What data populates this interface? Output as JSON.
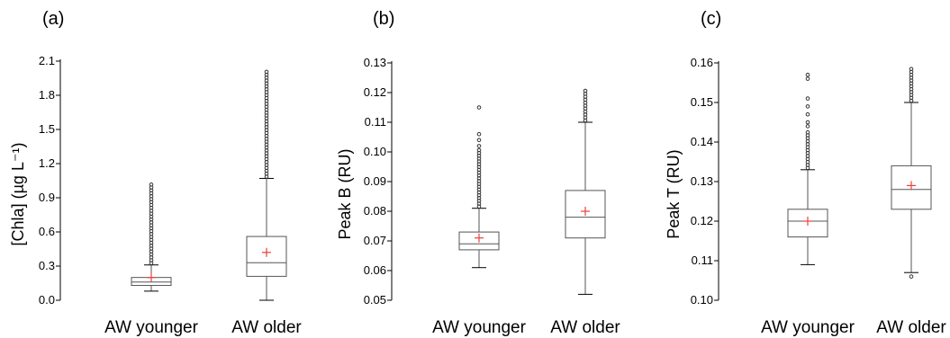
{
  "chart_data": [
    {
      "type": "box",
      "panel_label": "(a)",
      "ylabel": "[Chla] (µg L⁻¹)",
      "ylim": [
        0.0,
        2.1
      ],
      "yticks": [
        "0.0",
        "0.3",
        "0.6",
        "0.9",
        "1.2",
        "1.5",
        "1.8",
        "2.1"
      ],
      "categories": [
        "AW younger",
        "AW older"
      ],
      "boxes": [
        {
          "name": "AW younger",
          "whisker_low": 0.08,
          "q1": 0.13,
          "median": 0.16,
          "q3": 0.2,
          "whisker_high": 0.31,
          "mean": 0.2,
          "outlier_min": 0.31,
          "outlier_max": 1.0
        },
        {
          "name": "AW older",
          "whisker_low": 0.0,
          "q1": 0.21,
          "median": 0.33,
          "q3": 0.56,
          "whisker_high": 1.07,
          "mean": 0.42,
          "outlier_min": 1.07,
          "outlier_max": 1.99
        }
      ]
    },
    {
      "type": "box",
      "panel_label": "(b)",
      "ylabel": "Peak B (RU)",
      "ylim": [
        0.05,
        0.13
      ],
      "yticks": [
        "0.05",
        "0.06",
        "0.07",
        "0.08",
        "0.09",
        "0.10",
        "0.11",
        "0.12",
        "0.13"
      ],
      "categories": [
        "AW younger",
        "AW older"
      ],
      "boxes": [
        {
          "name": "AW younger",
          "whisker_low": 0.061,
          "q1": 0.067,
          "median": 0.069,
          "q3": 0.073,
          "whisker_high": 0.081,
          "mean": 0.071,
          "outlier_min": 0.081,
          "outlier_max": 0.1,
          "extra_outliers": [
            0.102,
            0.104,
            0.106,
            0.115
          ]
        },
        {
          "name": "AW older",
          "whisker_low": 0.052,
          "q1": 0.071,
          "median": 0.078,
          "q3": 0.087,
          "whisker_high": 0.11,
          "mean": 0.08,
          "outlier_min": 0.11,
          "outlier_max": 0.12
        }
      ]
    },
    {
      "type": "box",
      "panel_label": "(c)",
      "ylabel": "Peak T (RU)",
      "ylim": [
        0.1,
        0.16
      ],
      "yticks": [
        "0.10",
        "0.11",
        "0.12",
        "0.13",
        "0.14",
        "0.15",
        "0.16"
      ],
      "categories": [
        "AW younger",
        "AW older"
      ],
      "boxes": [
        {
          "name": "AW younger",
          "whisker_low": 0.109,
          "q1": 0.116,
          "median": 0.12,
          "q3": 0.123,
          "whisker_high": 0.133,
          "mean": 0.12,
          "outlier_min": 0.133,
          "outlier_max": 0.142,
          "extra_outliers": [
            0.144,
            0.145,
            0.147,
            0.149,
            0.151,
            0.156,
            0.157
          ]
        },
        {
          "name": "AW older",
          "whisker_low": 0.107,
          "q1": 0.123,
          "median": 0.128,
          "q3": 0.134,
          "whisker_high": 0.15,
          "mean": 0.129,
          "outlier_min": 0.15,
          "outlier_max": 0.158,
          "extra_outliers": [
            0.106
          ]
        }
      ]
    }
  ],
  "colors": {
    "box": "#555555",
    "mean_marker": "#e8413c",
    "outlier": "#333333"
  }
}
